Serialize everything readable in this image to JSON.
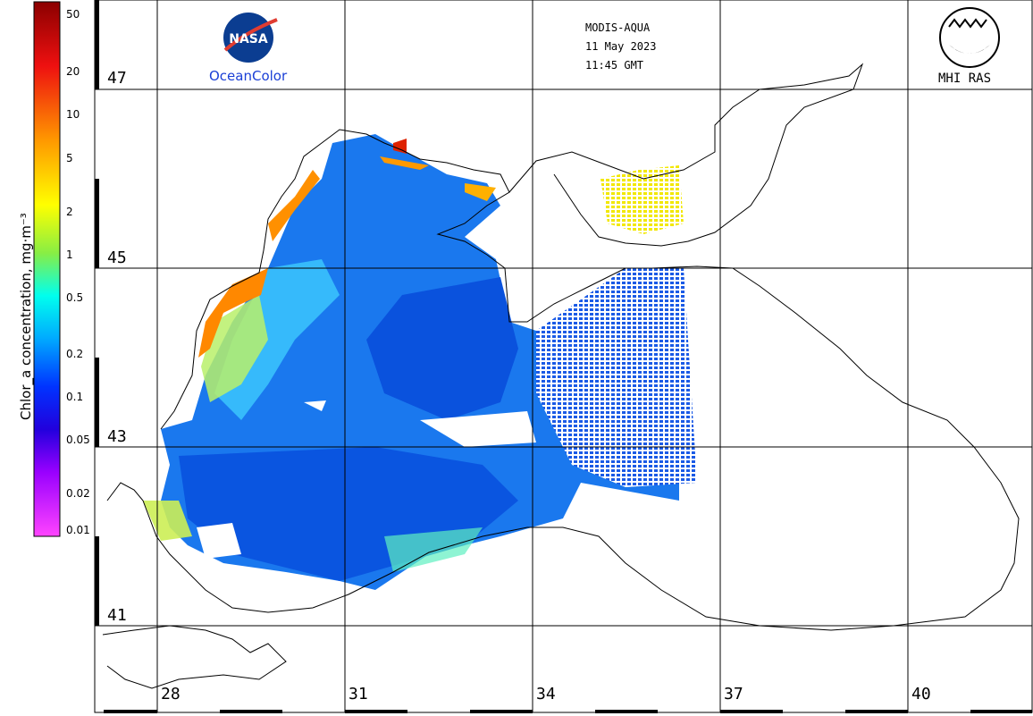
{
  "header": {
    "sensor": "MODIS-AQUA",
    "date": "11 May 2023",
    "time": "11:45 GMT"
  },
  "logos": {
    "nasa_label": "OceanColor",
    "nasa_wordmark": "NASA",
    "mhi_label": "MHI RAS"
  },
  "colorbar": {
    "title": "Chlor_a concentration, mg·m⁻³",
    "ticks": [
      "50",
      "20",
      "10",
      "5",
      "2",
      "1",
      "0.5",
      "0.2",
      "0.1",
      "0.05",
      "0.02",
      "0.01"
    ]
  },
  "latitude_labels": [
    "47",
    "45",
    "43",
    "41"
  ],
  "longitude_labels": [
    "28",
    "31",
    "34",
    "37",
    "40"
  ],
  "colors": {
    "very_low": "#ff33ff",
    "low": "#0033dd",
    "mid": "#1e88ff",
    "high": "#ffee00",
    "very_high": "#d80000"
  }
}
